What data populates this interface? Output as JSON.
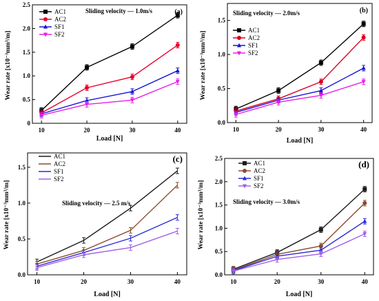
{
  "chart_data": [
    {
      "type": "line",
      "panel_label": "(a)",
      "annotation": "Sliding velocity — 1.0m/s",
      "xlabel": "Load [N]",
      "ylabel": "Wear rate [x10⁻³mm³/m]",
      "x": [
        10,
        20,
        30,
        40
      ],
      "xlim": [
        8,
        42
      ],
      "ylim": [
        0,
        2.5
      ],
      "xticks": [
        "10",
        "20",
        "30",
        "40"
      ],
      "yticks": [
        "0",
        "0.5",
        "1.0",
        "1.5",
        "2.0",
        "2.5"
      ],
      "legend_position": "top-left",
      "series": [
        {
          "name": "AC1",
          "color": "#000000",
          "marker": "square",
          "values": [
            0.27,
            1.18,
            1.62,
            2.28
          ]
        },
        {
          "name": "AC2",
          "color": "#e8002a",
          "marker": "circle",
          "values": [
            0.22,
            0.75,
            0.98,
            1.65
          ]
        },
        {
          "name": "SF1",
          "color": "#1414d8",
          "marker": "triangle",
          "values": [
            0.2,
            0.48,
            0.67,
            1.11
          ]
        },
        {
          "name": "SF2",
          "color": "#e81ee8",
          "marker": "triangle-down",
          "values": [
            0.17,
            0.4,
            0.49,
            0.88
          ]
        }
      ]
    },
    {
      "type": "line",
      "panel_label": "(b)",
      "annotation": "Sliding velocity — 2.0m/s",
      "xlabel": "Load [N]",
      "ylabel": "Wear rate [x10⁻³mm³/m]",
      "x": [
        10,
        20,
        30,
        40
      ],
      "xlim": [
        8,
        42
      ],
      "ylim": [
        0,
        1.75
      ],
      "xticks": [
        "10",
        "20",
        "30",
        "40"
      ],
      "yticks": [
        "0.0",
        "0.5",
        "1.0",
        "1.5"
      ],
      "legend_position": "top-left",
      "series": [
        {
          "name": "AC1",
          "color": "#000000",
          "marker": "square",
          "values": [
            0.2,
            0.47,
            0.88,
            1.45
          ]
        },
        {
          "name": "AC2",
          "color": "#d8001e",
          "marker": "circle",
          "values": [
            0.17,
            0.35,
            0.6,
            1.25
          ]
        },
        {
          "name": "SF1",
          "color": "#1414d8",
          "marker": "triangle",
          "values": [
            0.15,
            0.33,
            0.47,
            0.8
          ]
        },
        {
          "name": "SF2",
          "color": "#e81ee8",
          "marker": "triangle-down",
          "values": [
            0.12,
            0.3,
            0.4,
            0.6
          ]
        }
      ]
    },
    {
      "type": "line",
      "panel_label": "(c)",
      "annotation": "Sliding velocity — 2.5 m/s",
      "xlabel": "Load [N]",
      "ylabel": "Wear rate [x10⁻³mm³/m]",
      "x": [
        10,
        20,
        30,
        40
      ],
      "xlim": [
        8,
        42
      ],
      "ylim": [
        0,
        1.7
      ],
      "xticks": [
        "10",
        "20",
        "30",
        "40"
      ],
      "yticks": [
        "0.0",
        "0.5",
        "1.0",
        "1.5"
      ],
      "legend_position": "top-left",
      "series": [
        {
          "name": "AC1",
          "color": "#1a1a1a",
          "marker": "none",
          "values": [
            0.18,
            0.48,
            0.93,
            1.45
          ]
        },
        {
          "name": "AC2",
          "color": "#8a4a2a",
          "marker": "none",
          "values": [
            0.15,
            0.34,
            0.62,
            1.25
          ]
        },
        {
          "name": "SF1",
          "color": "#2a2ad8",
          "marker": "none",
          "values": [
            0.12,
            0.31,
            0.51,
            0.8
          ]
        },
        {
          "name": "SF2",
          "color": "#a060e8",
          "marker": "none",
          "values": [
            0.1,
            0.28,
            0.38,
            0.61
          ]
        }
      ]
    },
    {
      "type": "line",
      "panel_label": "(d)",
      "annotation": "Sliding velocity — 3.0m/s",
      "xlabel": "Load [N]",
      "ylabel": "Wear rate [x10⁻³mm³/m]",
      "x": [
        10,
        20,
        30,
        40
      ],
      "xlim": [
        8,
        42
      ],
      "ylim": [
        0,
        2.5
      ],
      "xticks": [
        "10",
        "20",
        "30",
        "40"
      ],
      "yticks": [
        "0.0",
        "0.5",
        "1.0",
        "1.5",
        "2.0",
        "2.5"
      ],
      "legend_position": "top-left",
      "series": [
        {
          "name": "AC1",
          "color": "#1a1a1a",
          "marker": "square",
          "values": [
            0.12,
            0.48,
            0.97,
            1.84
          ]
        },
        {
          "name": "AC2",
          "color": "#8a4a2a",
          "marker": "circle",
          "values": [
            0.1,
            0.44,
            0.62,
            1.54
          ]
        },
        {
          "name": "SF1",
          "color": "#2a2ad8",
          "marker": "triangle",
          "values": [
            0.09,
            0.4,
            0.53,
            1.15
          ]
        },
        {
          "name": "SF2",
          "color": "#a060e8",
          "marker": "triangle-down",
          "values": [
            0.08,
            0.33,
            0.45,
            0.88
          ]
        }
      ]
    }
  ]
}
